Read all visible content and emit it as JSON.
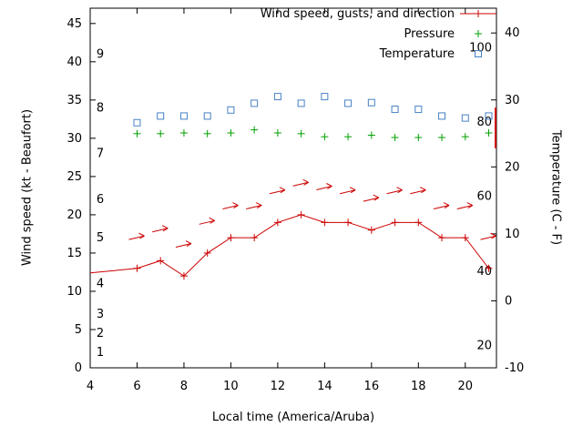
{
  "chart_data": {
    "type": "line",
    "title": "",
    "xlabel": "Local time (America/Aruba)",
    "ylabel_left": "Wind speed (kt - Beaufort)",
    "ylabel_right": "Temperature (C - F)",
    "xlim": [
      4,
      21.33
    ],
    "x_ticks": [
      4,
      6,
      8,
      10,
      12,
      14,
      16,
      18,
      20
    ],
    "ylim_left": [
      0,
      47
    ],
    "y_ticks_left": [
      0,
      5,
      10,
      15,
      20,
      25,
      30,
      35,
      40,
      45
    ],
    "ylim_right": [
      -10,
      43.7
    ],
    "y_ticks_right": [
      -10,
      0,
      10,
      20,
      30,
      40
    ],
    "grid": false,
    "legend_position": "top-right-inside",
    "beaufort_labels": [
      {
        "text": "1",
        "kt": 2
      },
      {
        "text": "2",
        "kt": 4.5
      },
      {
        "text": "3",
        "kt": 7
      },
      {
        "text": "4",
        "kt": 11
      },
      {
        "text": "5",
        "kt": 17
      },
      {
        "text": "6",
        "kt": 22
      },
      {
        "text": "7",
        "kt": 28
      },
      {
        "text": "8",
        "kt": 34
      },
      {
        "text": "9",
        "kt": 41
      }
    ],
    "fahrenheit_labels": [
      {
        "text": "20",
        "c": -6.7
      },
      {
        "text": "40",
        "c": 4.4
      },
      {
        "text": "60",
        "c": 15.6
      },
      {
        "text": "80",
        "c": 26.7
      },
      {
        "text": "100",
        "c": 37.8
      }
    ],
    "legend": [
      {
        "label": "Wind speed, gusts, and direction",
        "marker": "line-plus",
        "color": "#cc0000"
      },
      {
        "label": "Pressure",
        "marker": "plus",
        "color": "#00a000"
      },
      {
        "label": "Temperature",
        "marker": "square",
        "color": "#4682c4"
      }
    ],
    "series": {
      "wind_speed_kt": {
        "color": "#cc0000",
        "x": [
          4,
          6,
          7,
          8,
          9,
          10,
          11,
          12,
          13,
          14,
          15,
          16,
          17,
          18,
          19,
          20,
          21
        ],
        "y": [
          12.4,
          13,
          14,
          12,
          15,
          17,
          17,
          19,
          20,
          19,
          19,
          18,
          19,
          19,
          17,
          17,
          13
        ],
        "markers_start_index": 1
      },
      "wind_gusts_kt": {
        "color": "#cc0000",
        "x": [
          6,
          7,
          8,
          9,
          10,
          11,
          12,
          13,
          14,
          15,
          16,
          17,
          18,
          19,
          20,
          21
        ],
        "y": [
          17,
          18,
          16,
          19,
          21,
          21,
          23,
          24,
          23.5,
          23,
          22,
          23,
          23,
          21,
          21,
          17
        ]
      },
      "pressure": {
        "color": "#00a000",
        "x": [
          6,
          7,
          8,
          9,
          10,
          11,
          12,
          13,
          14,
          15,
          16,
          17,
          18,
          19,
          20,
          21
        ],
        "y": [
          30.6,
          30.6,
          30.7,
          30.6,
          30.7,
          31.1,
          30.7,
          30.6,
          30.2,
          30.2,
          30.4,
          30.1,
          30.1,
          30.1,
          30.2,
          30.7
        ]
      },
      "temperature_c": {
        "color": "#4682c4",
        "x": [
          6,
          7,
          8,
          9,
          10,
          11,
          12,
          13,
          14,
          15,
          16,
          17,
          18,
          19,
          20,
          21
        ],
        "y": [
          26.6,
          27.6,
          27.6,
          27.6,
          28.5,
          29.5,
          30.5,
          29.5,
          30.5,
          29.5,
          29.6,
          28.6,
          28.6,
          27.6,
          27.3,
          27.6
        ]
      }
    },
    "right_edge_mark": {
      "color": "#cc0000",
      "kt_from": 28.7,
      "kt_to": 34
    }
  }
}
